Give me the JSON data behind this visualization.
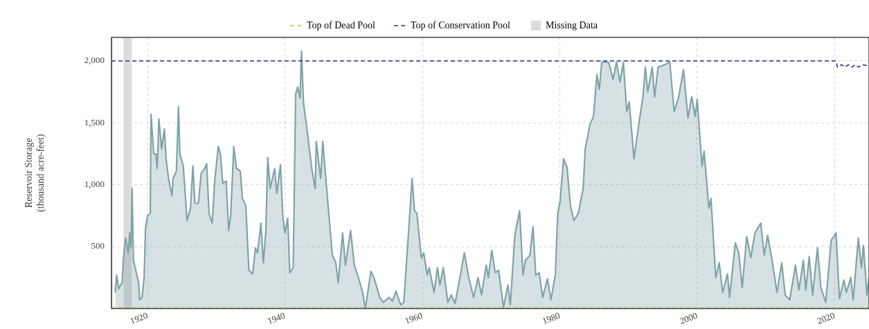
{
  "chart_data": {
    "type": "area",
    "ylabel": "Reservoir Storage\n(thousand acre-feet)",
    "xlim": [
      1914.75,
      2025
    ],
    "xticks": [
      1920,
      1940,
      1960,
      1980,
      2000,
      2020
    ],
    "ylim": [
      0,
      2190
    ],
    "yticks": [
      {
        "value": 500,
        "label": "500"
      },
      {
        "value": 1000,
        "label": "1,000"
      },
      {
        "value": 1500,
        "label": "1,500"
      },
      {
        "value": 2000,
        "label": "2,000"
      }
    ],
    "grid": true,
    "legend": "top",
    "line_style": "solid",
    "marker": "none",
    "ref_lines": [
      {
        "axis": "y",
        "value": 0,
        "label": "Top of Dead Pool",
        "color": "#c9b458",
        "line_style": "dashed"
      }
    ],
    "bands": [
      {
        "axis": "x",
        "from": 1916.5,
        "to": 1917.7,
        "label": "Missing Data",
        "color": "#dcdcdc"
      }
    ],
    "series": [
      {
        "type": "line",
        "name": "Top of Conservation Pool",
        "color": "#2e2e8c",
        "line_style": "dashed",
        "x": [
          1914.75,
          2020.2,
          2020.4,
          2021,
          2021.5,
          2022,
          2022.5,
          2023,
          2023.5,
          2024,
          2025
        ],
        "values": [
          2000,
          2000,
          1950,
          1970,
          1950,
          1970,
          1950,
          1970,
          1950,
          1970,
          1960
        ]
      },
      {
        "color": "#7fa3a8",
        "x": [
          1915.3,
          1915.5,
          1915.8,
          1916.3,
          1916.5,
          1916.8,
          1917.2,
          1917.4,
          1917.6,
          1917.75,
          1917.95,
          1918.35,
          1918.7,
          1918.85,
          1919.2,
          1919.5,
          1919.7,
          1920.0,
          1920.4,
          1920.5,
          1920.9,
          1921.2,
          1921.4,
          1921.65,
          1922.05,
          1922.45,
          1922.7,
          1923.05,
          1923.55,
          1923.7,
          1924.2,
          1924.5,
          1924.7,
          1925.2,
          1925.75,
          1926.25,
          1926.6,
          1926.9,
          1927.4,
          1927.8,
          1928.3,
          1928.6,
          1928.95,
          1929.4,
          1929.8,
          1930.3,
          1930.6,
          1930.95,
          1931.45,
          1931.8,
          1932.1,
          1932.55,
          1932.95,
          1933.5,
          1933.8,
          1934.3,
          1934.75,
          1935.3,
          1935.7,
          1936.0,
          1936.5,
          1936.85,
          1937.2,
          1937.5,
          1937.85,
          1938.5,
          1938.8,
          1939.35,
          1939.7,
          1940.0,
          1940.4,
          1940.7,
          1941.2,
          1941.55,
          1941.85,
          1942.2,
          1942.4,
          1942.7,
          1943.2,
          1943.9,
          1944.4,
          1944.55,
          1945.2,
          1945.5,
          1946.25,
          1946.9,
          1947.4,
          1947.75,
          1948.4,
          1948.8,
          1949.55,
          1950.1,
          1950.8,
          1951.3,
          1951.7,
          1952.5,
          1952.95,
          1953.8,
          1954.3,
          1955.15,
          1955.65,
          1956.15,
          1956.85,
          1957.3,
          1958.0,
          1958.5,
          1958.85,
          1959.2,
          1959.85,
          1960.2,
          1960.7,
          1961.0,
          1961.7,
          1962.2,
          1962.55,
          1963.05,
          1963.7,
          1964.2,
          1964.75,
          1965.6,
          1966.1,
          1966.75,
          1967.45,
          1968.1,
          1968.6,
          1969.3,
          1969.6,
          1970.1,
          1970.6,
          1971.1,
          1971.8,
          1972.45,
          1972.8,
          1973.45,
          1974.15,
          1974.65,
          1975.0,
          1975.65,
          1976.1,
          1976.5,
          1977.0,
          1977.5,
          1978.2,
          1978.7,
          1979.35,
          1979.7,
          1980.05,
          1980.55,
          1981.05,
          1981.55,
          1982.05,
          1982.7,
          1983.4,
          1983.7,
          1984.4,
          1984.9,
          1985.4,
          1985.75,
          1986.1,
          1987.1,
          1987.75,
          1988.25,
          1988.75,
          1989.25,
          1989.75,
          1990.1,
          1990.8,
          1991.6,
          1992.1,
          1992.45,
          1992.8,
          1993.45,
          1993.8,
          1994.3,
          1995.3,
          1996.0,
          1996.65,
          1997.3,
          1998.0,
          1998.65,
          1999.2,
          1999.7,
          2000.0,
          2000.7,
          2001.0,
          2001.7,
          2002.0,
          2002.7,
          2003.2,
          2003.7,
          2004.4,
          2004.7,
          2005.55,
          2006.05,
          2006.55,
          2007.2,
          2007.8,
          2008.4,
          2009.25,
          2009.75,
          2010.25,
          2010.9,
          2011.6,
          2012.3,
          2012.8,
          2013.45,
          2014.3,
          2014.8,
          2015.45,
          2015.8,
          2016.3,
          2016.8,
          2017.5,
          2018.0,
          2018.7,
          2019.5,
          2020.2,
          2020.7,
          2021.35,
          2021.7,
          2022.35,
          2022.7,
          2023.45,
          2023.9,
          2024.2,
          2024.7,
          2025.0
        ],
        "values": [
          130,
          270,
          160,
          210,
          410,
          570,
          450,
          610,
          490,
          970,
          390,
          290,
          210,
          70,
          90,
          250,
          650,
          750,
          770,
          1570,
          1250,
          1250,
          1130,
          1530,
          1290,
          1450,
          1210,
          1050,
          910,
          1050,
          1110,
          1630,
          1250,
          1150,
          710,
          810,
          1150,
          850,
          850,
          1090,
          1130,
          1170,
          770,
          690,
          1050,
          1310,
          1250,
          1010,
          1030,
          630,
          750,
          1310,
          1130,
          1110,
          890,
          830,
          310,
          280,
          490,
          450,
          690,
          370,
          610,
          1220,
          970,
          1130,
          930,
          1160,
          730,
          610,
          730,
          290,
          330,
          1730,
          1790,
          1700,
          2080,
          1660,
          1450,
          1130,
          970,
          1350,
          1050,
          1350,
          850,
          430,
          370,
          210,
          610,
          350,
          630,
          350,
          230,
          130,
          0,
          300,
          250,
          90,
          50,
          90,
          60,
          140,
          30,
          50,
          630,
          1050,
          790,
          770,
          410,
          450,
          270,
          330,
          130,
          330,
          190,
          330,
          50,
          110,
          40,
          290,
          450,
          250,
          90,
          250,
          110,
          350,
          250,
          470,
          290,
          310,
          10,
          190,
          30,
          590,
          790,
          270,
          390,
          430,
          660,
          270,
          290,
          90,
          240,
          70,
          270,
          770,
          870,
          1210,
          1140,
          830,
          710,
          770,
          970,
          1290,
          1490,
          1550,
          1890,
          1770,
          1990,
          1990,
          1850,
          1990,
          1830,
          1990,
          1590,
          1670,
          1210,
          1530,
          1710,
          1950,
          1750,
          1950,
          1710,
          1950,
          1970,
          1990,
          1590,
          1710,
          1930,
          1540,
          1710,
          1550,
          1690,
          1150,
          1270,
          810,
          890,
          250,
          370,
          130,
          280,
          90,
          530,
          450,
          170,
          580,
          410,
          610,
          690,
          430,
          590,
          390,
          130,
          370,
          110,
          70,
          350,
          150,
          390,
          150,
          420,
          110,
          490,
          170,
          50,
          550,
          610,
          80,
          230,
          130,
          250,
          70,
          570,
          330,
          510,
          110,
          250
        ]
      }
    ]
  }
}
